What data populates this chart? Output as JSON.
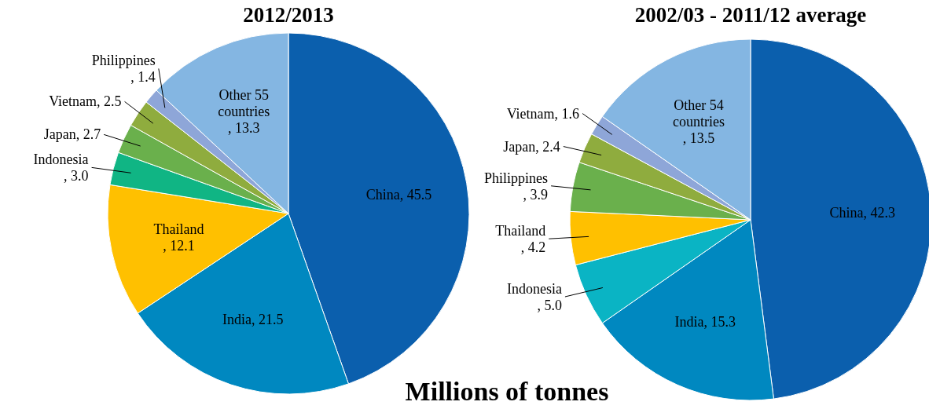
{
  "chart_data": [
    {
      "type": "pie",
      "title": "2012/2013",
      "categories": [
        "China",
        "India",
        "Thailand",
        "Indonesia",
        "Japan",
        "Vietnam",
        "Philippines",
        "Other 55 countries"
      ],
      "values": [
        45.5,
        21.5,
        12.1,
        3.0,
        2.7,
        2.5,
        1.4,
        13.3
      ],
      "value_labels": [
        ", 45.5",
        ", 21.5",
        ", 12.1",
        ", 3.0",
        ", 2.7",
        ", 2.5",
        ", 1.4",
        ", 13.3"
      ],
      "colors": [
        "#0b5fad",
        "#0088c0",
        "#ffc000",
        "#10b584",
        "#6ab04c",
        "#8fac3e",
        "#8ea6d8",
        "#84b6e2"
      ],
      "annotations": [
        "Millions of tonnes"
      ]
    },
    {
      "type": "pie",
      "title": "2002/03 - 2011/12 average",
      "categories": [
        "China",
        "India",
        "Indonesia",
        "Thailand",
        "Philippines",
        "Japan",
        "Vietnam",
        "Other 54 countries"
      ],
      "values": [
        42.3,
        15.3,
        5.0,
        4.2,
        3.9,
        2.4,
        1.6,
        13.5
      ],
      "value_labels": [
        ", 42.3",
        ", 15.3",
        ", 5.0",
        ", 4.2",
        ", 3.9",
        ", 2.4",
        ", 1.6",
        ", 13.5"
      ],
      "colors": [
        "#0b5fad",
        "#0088c0",
        "#0ab4c4",
        "#ffc000",
        "#6ab04c",
        "#8fac3e",
        "#8ea6d8",
        "#84b6e2"
      ]
    }
  ]
}
